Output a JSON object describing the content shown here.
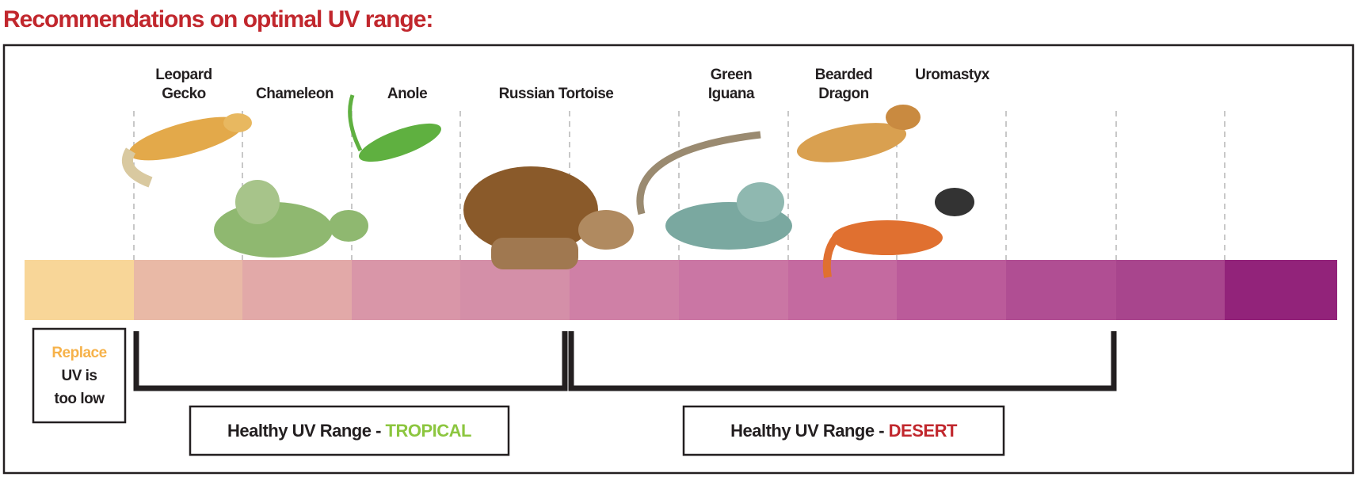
{
  "header": {
    "title": "Recommendations on optimal UV range:"
  },
  "animals": [
    {
      "label": [
        "Leopard",
        "Gecko"
      ]
    },
    {
      "label": [
        "Chameleon"
      ]
    },
    {
      "label": [
        "Anole"
      ]
    },
    {
      "label": [
        "Russian Tortoise"
      ]
    },
    {
      "label": [
        "Green",
        "Iguana"
      ]
    },
    {
      "label": [
        "Bearded",
        "Dragon"
      ]
    },
    {
      "label": [
        "Uromastyx"
      ]
    }
  ],
  "replace_box": {
    "highlight": "Replace",
    "lines": [
      "UV is",
      "too low"
    ]
  },
  "ranges": [
    {
      "prefix": "Healthy UV Range -",
      "name": "TROPICAL"
    },
    {
      "prefix": "Healthy UV Range -",
      "name": "DESERT"
    }
  ]
}
